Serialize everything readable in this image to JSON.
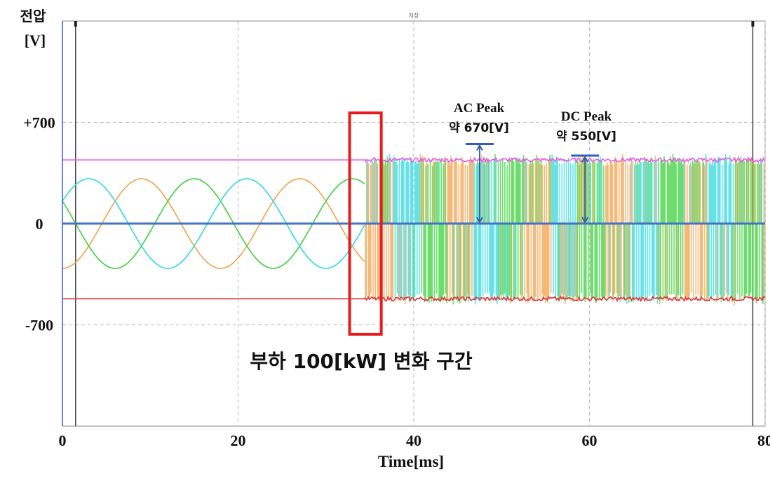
{
  "chart_data": {
    "type": "line",
    "title": "저장",
    "ylabel_line1": "전압",
    "ylabel_line2": "[V]",
    "xlabel": "Time[ms]",
    "xlim": [
      0,
      80
    ],
    "ylim": [
      -1400,
      1400
    ],
    "x_ticks": [
      0,
      20,
      40,
      60,
      80
    ],
    "x_tick_labels": [
      "0",
      "20",
      "40",
      "60",
      "80"
    ],
    "y_ticks": [
      700,
      0,
      -700
    ],
    "y_tick_labels": [
      "+700",
      "0",
      "-700"
    ],
    "grid": true,
    "cursors_ms": [
      1.5,
      78.6
    ],
    "switch_time_ms": 34.5,
    "series": [
      {
        "name": "",
        "color": "#f2a04a",
        "kind": "ac",
        "amplitude": 310,
        "period_ms": 18,
        "phase_deg": -90
      },
      {
        "name": "",
        "color": "#3ad13a",
        "kind": "ac",
        "amplitude": 310,
        "period_ms": 18,
        "phase_deg": 150
      },
      {
        "name": "",
        "color": "#2fd8e0",
        "kind": "ac",
        "amplitude": 310,
        "period_ms": 18,
        "phase_deg": 30
      },
      {
        "name": "",
        "color": "#e55ce5",
        "kind": "dc",
        "value": 440
      },
      {
        "name": "",
        "color": "#e03030",
        "kind": "dc",
        "value": -520
      },
      {
        "name": "",
        "color": "#4472c4",
        "kind": "dc",
        "value": 0
      }
    ],
    "annotations": {
      "ac_peak_line1": "AC Peak",
      "ac_peak_line2": "약 670[V]",
      "ac_peak_value": 550,
      "ac_peak_x_ms": 47.5,
      "dc_peak_line1": "DC Peak",
      "dc_peak_line2": "약 550[V]",
      "dc_peak_value": 470,
      "dc_peak_x_ms": 59.5,
      "load_change_label": "부하 100[kW] 변화 구간",
      "highlight_x_ms": [
        32.7,
        36.3
      ],
      "highlight_y": [
        765,
        -765
      ]
    }
  }
}
